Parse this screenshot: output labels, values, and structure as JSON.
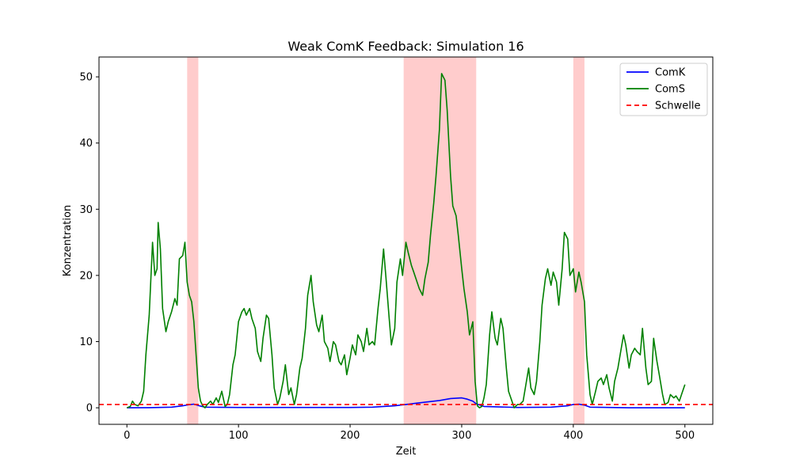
{
  "chart_data": {
    "type": "line",
    "title": "Weak ComK Feedback: Simulation 16",
    "xlabel": "Zeit",
    "ylabel": "Konzentration",
    "xlim": [
      -25,
      525
    ],
    "ylim": [
      -2.5,
      53
    ],
    "xticks": [
      0,
      100,
      200,
      300,
      400,
      500
    ],
    "yticks": [
      0,
      10,
      20,
      30,
      40,
      50
    ],
    "grid": false,
    "legend_position": "top-right",
    "threshold": {
      "name": "Schwelle",
      "value": 0.5,
      "color": "#ff0000",
      "style": "dashed"
    },
    "shaded_regions": [
      {
        "start": 54,
        "end": 64
      },
      {
        "start": 248,
        "end": 313
      },
      {
        "start": 400,
        "end": 410
      }
    ],
    "shade_color": "#ff9a9a",
    "series": [
      {
        "name": "ComK",
        "color": "#0000ff",
        "x": [
          0,
          20,
          40,
          50,
          55,
          60,
          65,
          70,
          100,
          150,
          200,
          220,
          240,
          250,
          260,
          270,
          280,
          290,
          300,
          305,
          310,
          313,
          320,
          350,
          380,
          395,
          400,
          405,
          410,
          415,
          450,
          500
        ],
        "y": [
          0,
          0.02,
          0.1,
          0.3,
          0.45,
          0.55,
          0.3,
          0.1,
          0.05,
          0.05,
          0.05,
          0.1,
          0.3,
          0.5,
          0.7,
          0.9,
          1.1,
          1.4,
          1.5,
          1.3,
          1.0,
          0.6,
          0.2,
          0.05,
          0.1,
          0.3,
          0.5,
          0.55,
          0.4,
          0.1,
          0.0,
          0.0
        ]
      },
      {
        "name": "ComS",
        "color": "#008000",
        "x": [
          0,
          3,
          5,
          7,
          10,
          13,
          15,
          17,
          20,
          23,
          25,
          27,
          28,
          30,
          32,
          35,
          37,
          40,
          43,
          45,
          47,
          50,
          52,
          54,
          56,
          58,
          60,
          62,
          64,
          66,
          68,
          70,
          72,
          75,
          77,
          80,
          82,
          85,
          88,
          90,
          92,
          95,
          97,
          100,
          103,
          105,
          107,
          110,
          112,
          115,
          117,
          120,
          122,
          125,
          127,
          130,
          132,
          135,
          137,
          140,
          142,
          145,
          147,
          150,
          152,
          155,
          157,
          160,
          162,
          165,
          167,
          170,
          172,
          175,
          177,
          180,
          182,
          185,
          187,
          190,
          192,
          195,
          197,
          200,
          202,
          205,
          207,
          210,
          212,
          215,
          217,
          220,
          222,
          225,
          227,
          230,
          232,
          235,
          237,
          240,
          242,
          245,
          247,
          250,
          252,
          255,
          257,
          260,
          262,
          265,
          267,
          270,
          272,
          275,
          277,
          280,
          282,
          285,
          287,
          290,
          292,
          295,
          297,
          300,
          302,
          305,
          307,
          310,
          312,
          314,
          316,
          318,
          320,
          322,
          325,
          327,
          330,
          332,
          335,
          337,
          340,
          342,
          345,
          347,
          350,
          352,
          355,
          357,
          360,
          362,
          365,
          367,
          370,
          372,
          375,
          377,
          380,
          382,
          385,
          387,
          390,
          392,
          395,
          397,
          400,
          402,
          405,
          407,
          410,
          412,
          415,
          417,
          420,
          422,
          425,
          427,
          430,
          432,
          435,
          437,
          440,
          442,
          445,
          447,
          450,
          452,
          455,
          457,
          460,
          462,
          465,
          467,
          470,
          472,
          475,
          477,
          480,
          482,
          485,
          487,
          490,
          492,
          495,
          497,
          500
        ],
        "y": [
          0,
          0.2,
          1.0,
          0.5,
          0.3,
          1.0,
          2.5,
          8.0,
          14.0,
          25.0,
          20.0,
          21.0,
          28.0,
          24.0,
          15.0,
          11.5,
          13.0,
          14.5,
          16.5,
          15.5,
          22.5,
          23.0,
          25.0,
          19.0,
          17.0,
          16.0,
          13.0,
          8.0,
          3.0,
          1.0,
          0.3,
          0.0,
          0.5,
          1.0,
          0.5,
          1.5,
          0.8,
          2.5,
          0.2,
          0.5,
          2.0,
          6.5,
          8.0,
          13.0,
          14.5,
          15.0,
          14.0,
          15.0,
          13.5,
          12.0,
          8.5,
          7.0,
          10.5,
          14.0,
          13.5,
          8.0,
          3.0,
          0.5,
          1.5,
          4.0,
          6.5,
          2.0,
          3.0,
          0.5,
          2.0,
          6.0,
          7.5,
          12.0,
          17.0,
          20.0,
          16.0,
          12.5,
          11.5,
          14.0,
          10.0,
          9.0,
          7.0,
          10.0,
          9.5,
          7.0,
          6.5,
          8.0,
          5.0,
          7.5,
          9.5,
          8.0,
          11.0,
          10.0,
          8.5,
          12.0,
          9.5,
          10.0,
          9.5,
          15.0,
          18.0,
          24.0,
          20.0,
          13.5,
          9.5,
          12.0,
          19.0,
          22.5,
          20.0,
          25.0,
          23.5,
          21.5,
          20.5,
          19.0,
          18.0,
          17.0,
          19.5,
          22.0,
          26.0,
          31.0,
          35.0,
          42.0,
          50.5,
          49.5,
          45.0,
          35.0,
          30.5,
          29.0,
          26.0,
          21.0,
          18.0,
          14.5,
          11.0,
          13.0,
          4.0,
          0.3,
          0.0,
          0.2,
          1.5,
          3.5,
          11.0,
          14.5,
          10.5,
          9.5,
          13.5,
          12.0,
          6.0,
          2.5,
          1.0,
          0.0,
          0.5,
          0.5,
          1.0,
          3.0,
          6.0,
          3.0,
          2.0,
          4.0,
          10.0,
          15.5,
          19.5,
          21.0,
          18.5,
          20.5,
          19.0,
          15.5,
          21.0,
          26.5,
          25.5,
          20.0,
          21.0,
          17.5,
          20.5,
          19.0,
          16.0,
          8.0,
          2.0,
          0.5,
          2.5,
          4.0,
          4.5,
          3.5,
          5.0,
          3.0,
          1.0,
          4.0,
          6.0,
          8.0,
          11.0,
          9.5,
          6.0,
          8.0,
          9.0,
          8.5,
          8.0,
          12.0,
          6.0,
          3.5,
          4.0,
          10.5,
          7.0,
          5.0,
          2.0,
          0.5,
          0.8,
          2.0,
          1.5,
          1.8,
          1.0,
          2.0,
          3.5
        ]
      }
    ]
  }
}
